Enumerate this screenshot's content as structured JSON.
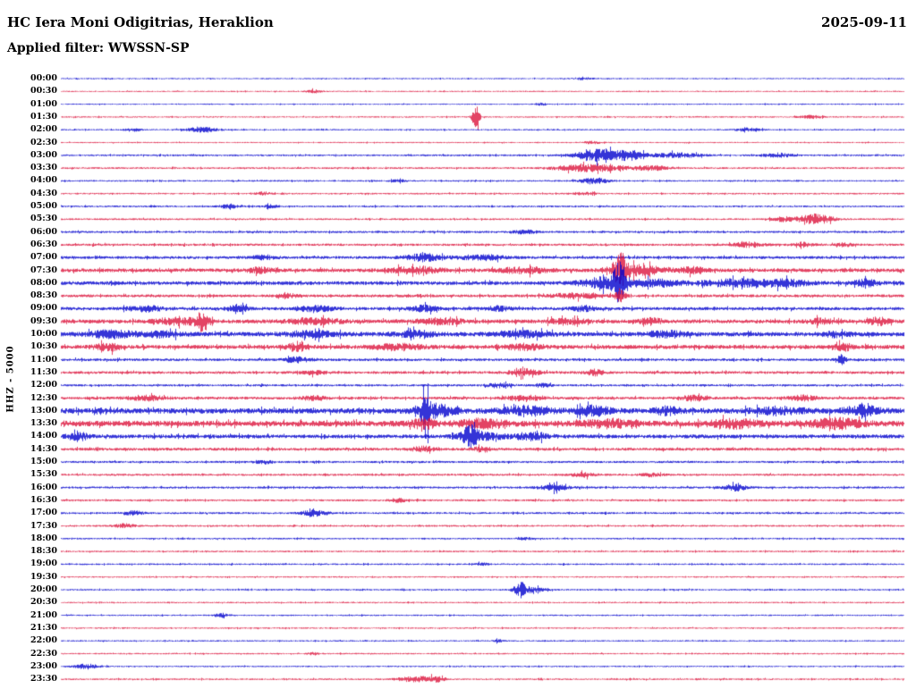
{
  "header": {
    "station_title": "HC Iera Moni Odigitrias, Heraklion",
    "date": "2025-09-11",
    "filter_label": "Applied filter: WWSSN-SP"
  },
  "axis": {
    "channel_scale_label": "HHZ - 5000"
  },
  "chart_data": {
    "type": "line",
    "subtype": "helicorder-day-plot",
    "title": "HC Iera Moni Odigitrias, Heraklion",
    "date": "2025-09-11",
    "filter": "WWSSN-SP",
    "channel": "HHZ",
    "scale": "5000",
    "minutes_per_row": 30,
    "rows_count": 48,
    "colors": {
      "blue": "#0000cd",
      "red": "#dc143c"
    },
    "burst_format": "[center_fraction_of_row, gaussian_width_fraction, half_amplitude_px]",
    "rows": [
      {
        "label": "00:00",
        "color": "blue",
        "base": 0.7,
        "bursts": [
          [
            0.62,
            0.008,
            1.2
          ]
        ]
      },
      {
        "label": "00:30",
        "color": "red",
        "base": 0.7,
        "bursts": [
          [
            0.3,
            0.006,
            1.5
          ]
        ]
      },
      {
        "label": "01:00",
        "color": "blue",
        "base": 0.7,
        "bursts": [
          [
            0.57,
            0.005,
            1.2
          ]
        ]
      },
      {
        "label": "01:30",
        "color": "red",
        "base": 0.8,
        "bursts": [
          [
            0.492,
            0.003,
            13
          ],
          [
            0.89,
            0.01,
            1.5
          ]
        ]
      },
      {
        "label": "02:00",
        "color": "blue",
        "base": 0.8,
        "bursts": [
          [
            0.085,
            0.006,
            1.8
          ],
          [
            0.168,
            0.012,
            3.2
          ],
          [
            0.815,
            0.01,
            1.8
          ]
        ]
      },
      {
        "label": "02:30",
        "color": "red",
        "base": 0.7,
        "bursts": [
          [
            0.63,
            0.008,
            1.3
          ]
        ]
      },
      {
        "label": "03:00",
        "color": "blue",
        "base": 1.0,
        "bursts": [
          [
            0.637,
            0.018,
            6.5
          ],
          [
            0.675,
            0.012,
            5
          ],
          [
            0.73,
            0.02,
            2.5
          ],
          [
            0.85,
            0.012,
            2.2
          ]
        ]
      },
      {
        "label": "03:30",
        "color": "red",
        "base": 1.0,
        "bursts": [
          [
            0.628,
            0.03,
            3.8
          ],
          [
            0.7,
            0.015,
            2.4
          ]
        ]
      },
      {
        "label": "04:00",
        "color": "blue",
        "base": 0.9,
        "bursts": [
          [
            0.633,
            0.012,
            3.2
          ],
          [
            0.4,
            0.006,
            1.4
          ]
        ]
      },
      {
        "label": "04:30",
        "color": "red",
        "base": 0.9,
        "bursts": [
          [
            0.24,
            0.006,
            1.8
          ],
          [
            0.62,
            0.01,
            1.4
          ]
        ]
      },
      {
        "label": "05:00",
        "color": "blue",
        "base": 1.0,
        "bursts": [
          [
            0.2,
            0.008,
            2.6
          ],
          [
            0.25,
            0.006,
            1.8
          ]
        ]
      },
      {
        "label": "05:30",
        "color": "red",
        "base": 1.0,
        "bursts": [
          [
            0.895,
            0.014,
            5.5
          ],
          [
            0.855,
            0.01,
            2.6
          ]
        ]
      },
      {
        "label": "06:00",
        "color": "blue",
        "base": 1.2,
        "bursts": [
          [
            0.55,
            0.01,
            1.8
          ]
        ]
      },
      {
        "label": "06:30",
        "color": "red",
        "base": 1.3,
        "bursts": [
          [
            0.815,
            0.012,
            2.6
          ],
          [
            0.88,
            0.008,
            2.2
          ],
          [
            0.93,
            0.006,
            1.8
          ]
        ]
      },
      {
        "label": "07:00",
        "color": "blue",
        "base": 1.6,
        "bursts": [
          [
            0.43,
            0.015,
            3.6
          ],
          [
            0.5,
            0.02,
            2.6
          ],
          [
            0.24,
            0.01,
            2.2
          ]
        ]
      },
      {
        "label": "07:30",
        "color": "red",
        "base": 2.1,
        "bursts": [
          [
            0.235,
            0.01,
            2.6
          ],
          [
            0.42,
            0.02,
            3.4
          ],
          [
            0.55,
            0.02,
            3.0
          ],
          [
            0.663,
            0.006,
            17
          ],
          [
            0.685,
            0.02,
            5
          ],
          [
            0.75,
            0.012,
            2.8
          ]
        ]
      },
      {
        "label": "08:00",
        "color": "blue",
        "base": 2.1,
        "bursts": [
          [
            0.663,
            0.005,
            21
          ],
          [
            0.645,
            0.02,
            5.5
          ],
          [
            0.705,
            0.02,
            3.6
          ],
          [
            0.8,
            0.03,
            3.4
          ],
          [
            0.86,
            0.02,
            2.8
          ],
          [
            0.955,
            0.01,
            3.2
          ]
        ]
      },
      {
        "label": "08:30",
        "color": "red",
        "base": 1.6,
        "bursts": [
          [
            0.663,
            0.004,
            7.5
          ],
          [
            0.61,
            0.02,
            2.6
          ],
          [
            0.27,
            0.01,
            1.8
          ]
        ]
      },
      {
        "label": "09:00",
        "color": "blue",
        "base": 1.8,
        "bursts": [
          [
            0.1,
            0.015,
            2.8
          ],
          [
            0.21,
            0.01,
            2.8
          ],
          [
            0.3,
            0.015,
            3.2
          ],
          [
            0.43,
            0.012,
            2.8
          ],
          [
            0.52,
            0.01,
            2.4
          ],
          [
            0.62,
            0.01,
            2.4
          ]
        ]
      },
      {
        "label": "09:30",
        "color": "red",
        "base": 2.2,
        "bursts": [
          [
            0.168,
            0.005,
            9.5
          ],
          [
            0.14,
            0.02,
            3.6
          ],
          [
            0.3,
            0.02,
            3.2
          ],
          [
            0.45,
            0.02,
            2.8
          ],
          [
            0.6,
            0.015,
            2.8
          ],
          [
            0.7,
            0.01,
            2.8
          ],
          [
            0.9,
            0.01,
            2.8
          ],
          [
            0.97,
            0.008,
            3.6
          ]
        ]
      },
      {
        "label": "10:00",
        "color": "blue",
        "base": 2.5,
        "bursts": [
          [
            0.06,
            0.02,
            3.2
          ],
          [
            0.12,
            0.015,
            2.8
          ],
          [
            0.3,
            0.02,
            2.8
          ],
          [
            0.42,
            0.015,
            2.8
          ],
          [
            0.55,
            0.02,
            2.8
          ],
          [
            0.72,
            0.015,
            2.8
          ],
          [
            0.92,
            0.01,
            2.8
          ]
        ]
      },
      {
        "label": "10:30",
        "color": "red",
        "base": 2.3,
        "bursts": [
          [
            0.055,
            0.01,
            3.6
          ],
          [
            0.28,
            0.008,
            4.5
          ],
          [
            0.4,
            0.02,
            2.8
          ],
          [
            0.55,
            0.015,
            2.8
          ],
          [
            0.93,
            0.008,
            3.2
          ]
        ]
      },
      {
        "label": "11:00",
        "color": "blue",
        "base": 1.5,
        "bursts": [
          [
            0.28,
            0.01,
            2.6
          ],
          [
            0.925,
            0.004,
            5.5
          ]
        ]
      },
      {
        "label": "11:30",
        "color": "red",
        "base": 1.5,
        "bursts": [
          [
            0.55,
            0.012,
            3.6
          ],
          [
            0.632,
            0.008,
            3.2
          ],
          [
            0.3,
            0.01,
            2.2
          ]
        ]
      },
      {
        "label": "12:00",
        "color": "blue",
        "base": 1.2,
        "bursts": [
          [
            0.52,
            0.01,
            2.2
          ],
          [
            0.57,
            0.008,
            1.8
          ]
        ]
      },
      {
        "label": "12:30",
        "color": "red",
        "base": 1.6,
        "bursts": [
          [
            0.1,
            0.015,
            2.6
          ],
          [
            0.3,
            0.01,
            2.2
          ],
          [
            0.55,
            0.015,
            2.6
          ],
          [
            0.75,
            0.01,
            2.6
          ],
          [
            0.88,
            0.012,
            2.6
          ]
        ]
      },
      {
        "label": "13:00",
        "color": "blue",
        "base": 3.0,
        "bursts": [
          [
            0.432,
            0.003,
            29
          ],
          [
            0.445,
            0.015,
            7
          ],
          [
            0.55,
            0.02,
            3.6
          ],
          [
            0.63,
            0.015,
            4.5
          ],
          [
            0.72,
            0.01,
            3.6
          ],
          [
            0.85,
            0.02,
            3.6
          ],
          [
            0.95,
            0.015,
            4.5
          ]
        ]
      },
      {
        "label": "13:30",
        "color": "red",
        "base": 3.2,
        "bursts": [
          [
            0.43,
            0.01,
            4.5
          ],
          [
            0.5,
            0.02,
            3.6
          ],
          [
            0.65,
            0.02,
            3.6
          ],
          [
            0.8,
            0.02,
            3.6
          ],
          [
            0.92,
            0.02,
            4.5
          ]
        ]
      },
      {
        "label": "14:00",
        "color": "blue",
        "base": 2.2,
        "bursts": [
          [
            0.02,
            0.008,
            4.5
          ],
          [
            0.485,
            0.006,
            9.5
          ],
          [
            0.5,
            0.02,
            3.6
          ],
          [
            0.56,
            0.012,
            3.6
          ]
        ]
      },
      {
        "label": "14:30",
        "color": "red",
        "base": 1.6,
        "bursts": [
          [
            0.43,
            0.01,
            2.6
          ],
          [
            0.5,
            0.008,
            2.6
          ]
        ]
      },
      {
        "label": "15:00",
        "color": "blue",
        "base": 1.2,
        "bursts": [
          [
            0.24,
            0.008,
            1.8
          ]
        ]
      },
      {
        "label": "15:30",
        "color": "red",
        "base": 1.2,
        "bursts": [
          [
            0.62,
            0.01,
            2.2
          ],
          [
            0.7,
            0.008,
            1.8
          ]
        ]
      },
      {
        "label": "16:00",
        "color": "blue",
        "base": 1.2,
        "bursts": [
          [
            0.585,
            0.012,
            3.2
          ],
          [
            0.8,
            0.01,
            3.2
          ]
        ]
      },
      {
        "label": "16:30",
        "color": "red",
        "base": 1.1,
        "bursts": [
          [
            0.4,
            0.008,
            1.8
          ]
        ]
      },
      {
        "label": "17:00",
        "color": "blue",
        "base": 1.1,
        "bursts": [
          [
            0.085,
            0.008,
            2.6
          ],
          [
            0.3,
            0.01,
            3.2
          ]
        ]
      },
      {
        "label": "17:30",
        "color": "red",
        "base": 1.0,
        "bursts": [
          [
            0.075,
            0.008,
            2.2
          ]
        ]
      },
      {
        "label": "18:00",
        "color": "blue",
        "base": 0.9,
        "bursts": [
          [
            0.55,
            0.006,
            1.4
          ]
        ]
      },
      {
        "label": "18:30",
        "color": "red",
        "base": 0.9,
        "bursts": []
      },
      {
        "label": "19:00",
        "color": "blue",
        "base": 0.9,
        "bursts": [
          [
            0.5,
            0.005,
            1.4
          ]
        ]
      },
      {
        "label": "19:30",
        "color": "red",
        "base": 0.8,
        "bursts": []
      },
      {
        "label": "20:00",
        "color": "blue",
        "base": 0.9,
        "bursts": [
          [
            0.545,
            0.005,
            7.5
          ],
          [
            0.558,
            0.012,
            2.6
          ]
        ]
      },
      {
        "label": "20:30",
        "color": "red",
        "base": 0.8,
        "bursts": []
      },
      {
        "label": "21:00",
        "color": "blue",
        "base": 0.8,
        "bursts": [
          [
            0.19,
            0.006,
            2.2
          ]
        ]
      },
      {
        "label": "21:30",
        "color": "red",
        "base": 0.8,
        "bursts": []
      },
      {
        "label": "22:00",
        "color": "blue",
        "base": 0.8,
        "bursts": [
          [
            0.52,
            0.004,
            1.4
          ]
        ]
      },
      {
        "label": "22:30",
        "color": "red",
        "base": 0.8,
        "bursts": [
          [
            0.3,
            0.005,
            1.4
          ]
        ]
      },
      {
        "label": "23:00",
        "color": "blue",
        "base": 0.8,
        "bursts": [
          [
            0.03,
            0.01,
            2.8
          ]
        ]
      },
      {
        "label": "23:30",
        "color": "red",
        "base": 0.9,
        "bursts": [
          [
            0.42,
            0.015,
            2.8
          ],
          [
            0.445,
            0.008,
            2.4
          ]
        ]
      }
    ]
  }
}
